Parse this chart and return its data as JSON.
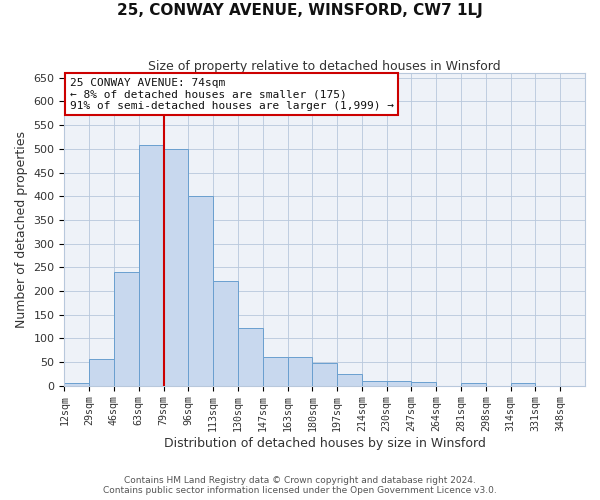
{
  "title": "25, CONWAY AVENUE, WINSFORD, CW7 1LJ",
  "subtitle": "Size of property relative to detached houses in Winsford",
  "xlabel": "Distribution of detached houses by size in Winsford",
  "ylabel": "Number of detached properties",
  "bin_labels": [
    "12sqm",
    "29sqm",
    "46sqm",
    "63sqm",
    "79sqm",
    "96sqm",
    "113sqm",
    "130sqm",
    "147sqm",
    "163sqm",
    "180sqm",
    "197sqm",
    "214sqm",
    "230sqm",
    "247sqm",
    "264sqm",
    "281sqm",
    "298sqm",
    "314sqm",
    "331sqm",
    "348sqm"
  ],
  "bar_heights": [
    5,
    57,
    240,
    507,
    500,
    400,
    222,
    122,
    60,
    60,
    47,
    25,
    10,
    10,
    8,
    0,
    5,
    0,
    5,
    0
  ],
  "bar_color": "#c8d8ee",
  "bar_edge_color": "#6a9fcf",
  "grid_color": "#b8c8dc",
  "background_color": "#eef2f8",
  "vline_bin_index": 4,
  "vline_color": "#cc0000",
  "annotation_text": "25 CONWAY AVENUE: 74sqm\n← 8% of detached houses are smaller (175)\n91% of semi-detached houses are larger (1,999) →",
  "annotation_box_color": "#ffffff",
  "annotation_box_edge": "#cc0000",
  "ylim": [
    0,
    660
  ],
  "yticks": [
    0,
    50,
    100,
    150,
    200,
    250,
    300,
    350,
    400,
    450,
    500,
    550,
    600,
    650
  ],
  "footer_line1": "Contains HM Land Registry data © Crown copyright and database right 2024.",
  "footer_line2": "Contains public sector information licensed under the Open Government Licence v3.0."
}
